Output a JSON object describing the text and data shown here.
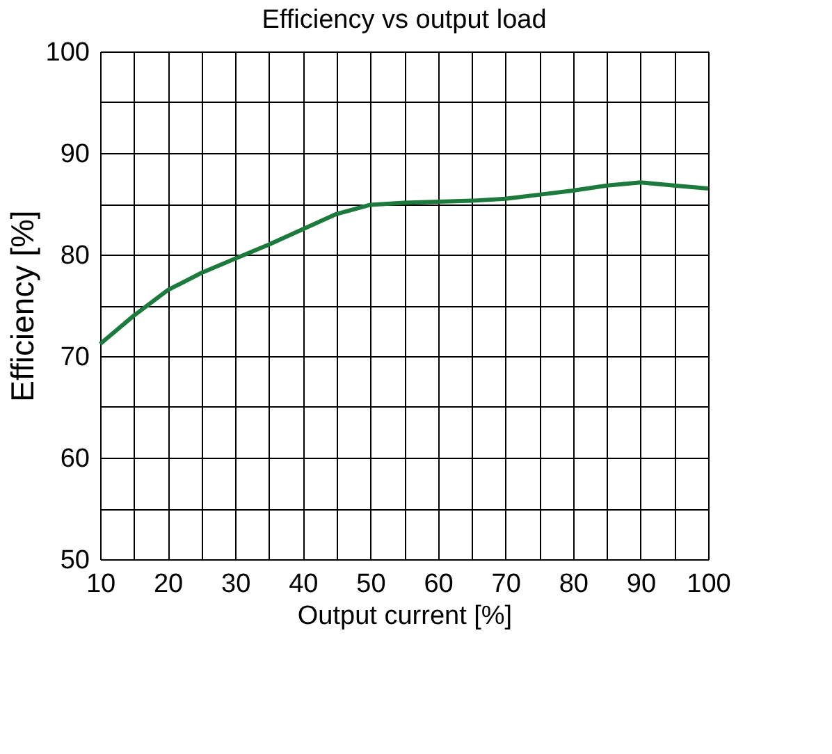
{
  "chart_data": {
    "type": "line",
    "title": "Efficiency vs output load",
    "xlabel": "Output current [%]",
    "ylabel": "Efficiency [%]",
    "x": [
      10,
      15,
      20,
      25,
      30,
      35,
      40,
      45,
      50,
      55,
      60,
      65,
      70,
      75,
      80,
      85,
      90,
      95,
      100
    ],
    "series": [
      {
        "color": "#1b7a3c",
        "values": [
          71.2,
          74.0,
          76.5,
          78.2,
          79.6,
          81.0,
          82.5,
          84.0,
          84.9,
          85.1,
          85.2,
          85.3,
          85.5,
          85.9,
          86.3,
          86.8,
          87.1,
          86.8,
          86.5
        ]
      }
    ],
    "xlim": [
      10,
      100
    ],
    "ylim": [
      50,
      100
    ],
    "xticks": [
      10,
      {
        "value": 15,
        "label": null
      },
      20,
      {
        "value": 25,
        "label": null
      },
      30,
      {
        "value": 35,
        "label": null
      },
      40,
      {
        "value": 45,
        "label": null
      },
      50,
      {
        "value": 55,
        "label": null
      },
      60,
      {
        "value": 65,
        "label": null
      },
      70,
      {
        "value": 75,
        "label": null
      },
      80,
      {
        "value": 85,
        "label": null
      },
      90,
      {
        "value": 95,
        "label": null
      },
      100
    ],
    "yticks": [
      50,
      {
        "value": 55,
        "label": null
      },
      60,
      {
        "value": 65,
        "label": null
      },
      70,
      {
        "value": 75,
        "label": null
      },
      80,
      {
        "value": 85,
        "label": null
      },
      90,
      {
        "value": 95,
        "label": null
      },
      100
    ],
    "grid": true,
    "marker": "none",
    "line_style": "solid"
  }
}
